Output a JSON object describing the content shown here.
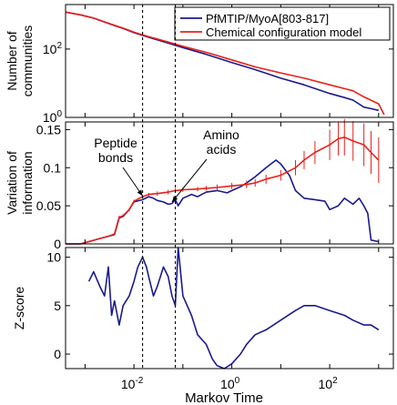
{
  "colors": {
    "series1": "#1a1a8c",
    "series2": "#e8201a",
    "axis": "#000000",
    "marker": "#000000"
  },
  "markers": {
    "x": [
      0.015,
      0.07
    ],
    "labels": [
      {
        "name": "peptide",
        "lines": [
          "Peptide",
          "bonds"
        ],
        "target": [
          0.015,
          0.063
        ]
      },
      {
        "name": "amino",
        "lines": [
          "Amino",
          "acids"
        ],
        "target": [
          0.06,
          0.055
        ]
      }
    ]
  },
  "chart_data": [
    {
      "type": "line",
      "id": "communities",
      "ylabel": [
        "Number of",
        "communities"
      ],
      "xscale": "log",
      "yscale": "log",
      "xlim": [
        0.0004,
        2000
      ],
      "ylim": [
        1,
        2000
      ],
      "yticks": [
        {
          "value": 1,
          "base": "10",
          "exp": "0"
        },
        {
          "value": 100,
          "base": "10",
          "exp": "2"
        }
      ],
      "legend": {
        "position": "top-right",
        "entries": [
          "PfMTIP/MyoA[803-817]",
          "Chemical configuration model"
        ]
      },
      "series": [
        {
          "name": "PfMTIP/MyoA[803-817]",
          "color_key": "series1",
          "x": [
            0.0004,
            0.0008,
            0.0015,
            0.003,
            0.006,
            0.01,
            0.02,
            0.05,
            0.1,
            0.3,
            1,
            3,
            10,
            30,
            100,
            200,
            300,
            500,
            700,
            1000
          ],
          "y": [
            1200,
            1000,
            800,
            560,
            400,
            300,
            220,
            150,
            110,
            70,
            40,
            25,
            14,
            9,
            5,
            3.8,
            3.2,
            2,
            1.8,
            1.6
          ]
        },
        {
          "name": "Chemical configuration model",
          "color_key": "series2",
          "x": [
            0.0004,
            0.0008,
            0.0015,
            0.003,
            0.006,
            0.01,
            0.02,
            0.05,
            0.1,
            0.3,
            1,
            3,
            10,
            30,
            100,
            300,
            500,
            1000,
            1300
          ],
          "y": [
            1200,
            1000,
            800,
            570,
            410,
            310,
            230,
            160,
            120,
            80,
            48,
            30,
            20,
            14,
            9,
            6,
            4,
            2.5,
            1.2
          ]
        }
      ]
    },
    {
      "type": "line",
      "id": "variation",
      "ylabel": [
        "Variation of",
        "information"
      ],
      "xscale": "log",
      "xlim": [
        0.0004,
        2000
      ],
      "ylim": [
        0,
        0.16
      ],
      "yticks": [
        {
          "value": 0,
          "label": "0"
        },
        {
          "value": 0.05,
          "label": "0.05"
        },
        {
          "value": 0.1,
          "label": "0.1"
        },
        {
          "value": 0.15,
          "label": "0.15"
        }
      ],
      "series": [
        {
          "name": "",
          "color_key": "series1",
          "x": [
            0.0004,
            0.0008,
            0.0012,
            0.002,
            0.003,
            0.004,
            0.005,
            0.006,
            0.008,
            0.01,
            0.015,
            0.02,
            0.025,
            0.03,
            0.04,
            0.05,
            0.06,
            0.07,
            0.08,
            0.1,
            0.15,
            0.2,
            0.3,
            0.5,
            0.8,
            1,
            1.5,
            2,
            3,
            5,
            8,
            10,
            15,
            20,
            30,
            50,
            80,
            100,
            150,
            200,
            300,
            400,
            500,
            600,
            700,
            1000
          ],
          "y": [
            0,
            0,
            0.003,
            0.007,
            0.01,
            0.012,
            0.034,
            0.036,
            0.045,
            0.055,
            0.058,
            0.062,
            0.06,
            0.057,
            0.055,
            0.052,
            0.053,
            0.058,
            0.05,
            0.06,
            0.065,
            0.062,
            0.068,
            0.07,
            0.067,
            0.07,
            0.075,
            0.08,
            0.088,
            0.1,
            0.11,
            0.105,
            0.09,
            0.07,
            0.06,
            0.058,
            0.056,
            0.045,
            0.05,
            0.06,
            0.052,
            0.06,
            0.05,
            0.04,
            0.005,
            0.003
          ]
        },
        {
          "name": "",
          "color_key": "series2",
          "x": [
            0.0004,
            0.0008,
            0.0012,
            0.002,
            0.003,
            0.004,
            0.005,
            0.006,
            0.008,
            0.01,
            0.015,
            0.02,
            0.03,
            0.05,
            0.07,
            0.1,
            0.2,
            0.3,
            0.5,
            1,
            2,
            3,
            5,
            10,
            20,
            30,
            50,
            100,
            150,
            200,
            300,
            500,
            700,
            1000
          ],
          "y": [
            0,
            0,
            0.003,
            0.007,
            0.01,
            0.013,
            0.035,
            0.037,
            0.045,
            0.056,
            0.062,
            0.065,
            0.066,
            0.068,
            0.07,
            0.071,
            0.072,
            0.073,
            0.074,
            0.076,
            0.078,
            0.08,
            0.085,
            0.09,
            0.1,
            0.11,
            0.12,
            0.13,
            0.138,
            0.14,
            0.135,
            0.13,
            0.12,
            0.11
          ],
          "error": [
            0,
            0,
            0.001,
            0.001,
            0.001,
            0.001,
            0.002,
            0.002,
            0.002,
            0.002,
            0.002,
            0.002,
            0.003,
            0.003,
            0.003,
            0.003,
            0.003,
            0.003,
            0.004,
            0.004,
            0.005,
            0.005,
            0.006,
            0.007,
            0.01,
            0.012,
            0.015,
            0.02,
            0.022,
            0.024,
            0.026,
            0.028,
            0.028,
            0.03
          ]
        }
      ]
    },
    {
      "type": "line",
      "id": "zscore",
      "ylabel": [
        "Z-score"
      ],
      "xlabel": "Markov Time",
      "xscale": "log",
      "xlim": [
        0.0004,
        2000
      ],
      "ylim": [
        -1.5,
        11
      ],
      "yticks": [
        {
          "value": 0,
          "label": "0"
        },
        {
          "value": 5,
          "label": "5"
        },
        {
          "value": 10,
          "label": "10"
        }
      ],
      "xticks": [
        {
          "value": 0.01,
          "base": "10",
          "exp": "-2"
        },
        {
          "value": 1,
          "base": "10",
          "exp": "0"
        },
        {
          "value": 100,
          "base": "10",
          "exp": "2"
        }
      ],
      "series": [
        {
          "name": "",
          "color_key": "series1",
          "x": [
            0.0012,
            0.0015,
            0.002,
            0.0025,
            0.003,
            0.0035,
            0.004,
            0.005,
            0.006,
            0.008,
            0.01,
            0.012,
            0.015,
            0.018,
            0.02,
            0.025,
            0.03,
            0.04,
            0.05,
            0.06,
            0.07,
            0.08,
            0.1,
            0.15,
            0.2,
            0.3,
            0.4,
            0.5,
            0.7,
            1,
            1.5,
            2,
            3,
            5,
            10,
            20,
            30,
            50,
            100,
            200,
            300,
            500,
            700,
            1000
          ],
          "y": [
            7.5,
            8.5,
            7,
            6,
            9,
            4,
            5.5,
            3,
            5,
            6,
            7.5,
            9,
            10,
            9,
            8,
            6,
            7,
            9,
            8,
            6,
            5,
            11,
            6,
            4,
            2,
            1,
            -0.5,
            -1.2,
            -1.5,
            -1,
            0,
            1,
            2,
            2.5,
            3.5,
            4.5,
            5,
            5,
            4.5,
            4,
            3.5,
            3,
            3,
            2.5
          ]
        }
      ]
    }
  ]
}
